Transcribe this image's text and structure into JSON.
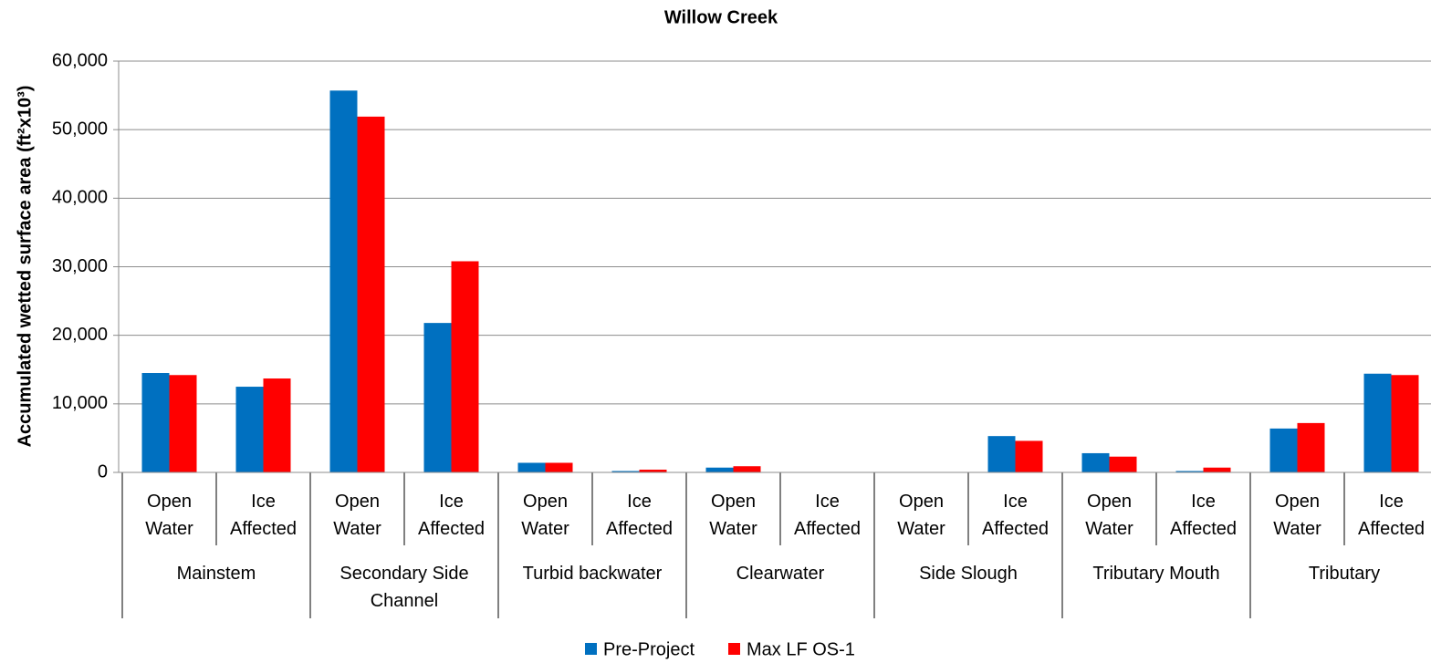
{
  "chart_data": {
    "type": "bar",
    "title": "Willow Creek",
    "y_label": "Accumulated wetted surface area (ft²x10³)",
    "categories": [
      "Open Water",
      "Ice Affected",
      "Open Water",
      "Ice Affected",
      "Open Water",
      "Ice Affected",
      "Open Water",
      "Ice Affected",
      "Open Water",
      "Ice Affected",
      "Open Water",
      "Ice Affected",
      "Open Water",
      "Ice Affected"
    ],
    "groups": [
      "Mainstem",
      "Secondary Side Channel",
      "Turbid backwater",
      "Clearwater",
      "Side Slough",
      "Tributary Mouth",
      "Tributary"
    ],
    "series": [
      {
        "name": "Pre-Project",
        "color": "#0070c0",
        "values": [
          14500,
          12500,
          55700,
          21800,
          1400,
          200,
          700,
          0,
          0,
          5300,
          2800,
          200,
          6400,
          14400
        ]
      },
      {
        "name": "Max LF OS-1",
        "color": "#ff0000",
        "values": [
          14200,
          13700,
          51900,
          30800,
          1400,
          400,
          900,
          0,
          0,
          4600,
          2300,
          700,
          7200,
          14200
        ]
      }
    ],
    "ylim": [
      0,
      60000
    ],
    "yticks": [
      0,
      {
        "value": 10000,
        "label": "10,000"
      },
      {
        "value": 20000,
        "label": "20,000"
      },
      {
        "value": 30000,
        "label": "30,000"
      },
      {
        "value": 40000,
        "label": "40,000"
      },
      {
        "value": 50000,
        "label": "50,000"
      },
      {
        "value": 60000,
        "label": "60,000"
      }
    ],
    "grid": true,
    "legend": "bottom"
  }
}
